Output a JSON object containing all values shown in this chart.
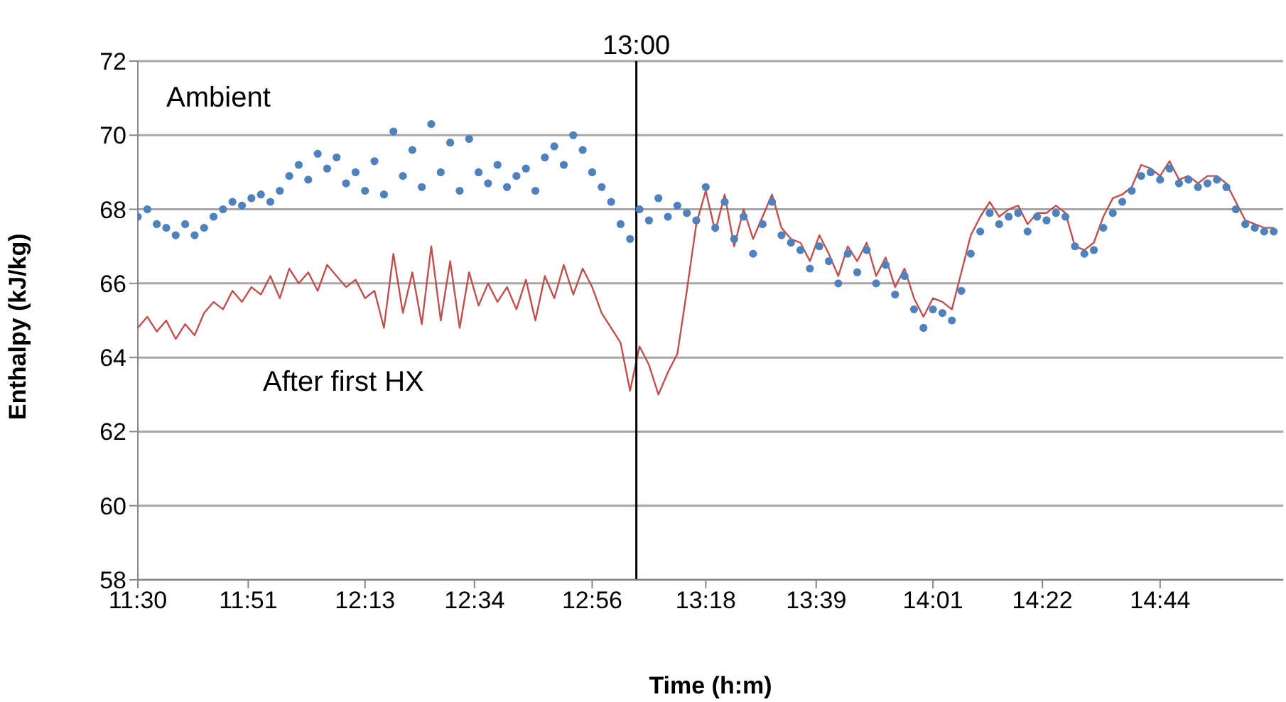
{
  "chart_data": {
    "type": "line",
    "xlabel": "Time (h:m)",
    "ylabel": "Enthalpy (kJ/kg)",
    "x": [
      11.5,
      11.53,
      11.56,
      11.59,
      11.62,
      11.65,
      11.68,
      11.71,
      11.74,
      11.77,
      11.8,
      11.83,
      11.86,
      11.89,
      11.92,
      11.95,
      11.98,
      12.01,
      12.04,
      12.07,
      12.1,
      12.13,
      12.16,
      12.19,
      12.22,
      12.25,
      12.28,
      12.31,
      12.34,
      12.37,
      12.4,
      12.43,
      12.46,
      12.49,
      12.52,
      12.55,
      12.58,
      12.61,
      12.64,
      12.67,
      12.7,
      12.73,
      12.76,
      12.79,
      12.82,
      12.85,
      12.88,
      12.91,
      12.94,
      12.97,
      13.0,
      13.03,
      13.06,
      13.09,
      13.12,
      13.15,
      13.18,
      13.21,
      13.24,
      13.27,
      13.3,
      13.33,
      13.36,
      13.39,
      13.42,
      13.45,
      13.48,
      13.51,
      13.54,
      13.57,
      13.6,
      13.63,
      13.66,
      13.69,
      13.72,
      13.75,
      13.78,
      13.81,
      13.84,
      13.87,
      13.9,
      13.93,
      13.96,
      13.99,
      14.02,
      14.05,
      14.08,
      14.11,
      14.14,
      14.17,
      14.2,
      14.23,
      14.26,
      14.29,
      14.32,
      14.35,
      14.38,
      14.41,
      14.44,
      14.47,
      14.5,
      14.53,
      14.56,
      14.59,
      14.62,
      14.65,
      14.68,
      14.71,
      14.74,
      14.77,
      14.8,
      14.83,
      14.86,
      14.89,
      14.92,
      14.95,
      14.98,
      15.01,
      15.04,
      15.07,
      15.1
    ],
    "series": [
      {
        "name": "Ambient",
        "type": "scatter",
        "marker": "circle",
        "color": "#4f81bd",
        "values": [
          67.8,
          68.0,
          67.6,
          67.5,
          67.3,
          67.6,
          67.3,
          67.5,
          67.8,
          68.0,
          68.2,
          68.1,
          68.3,
          68.4,
          68.2,
          68.5,
          68.9,
          69.2,
          68.8,
          69.5,
          69.1,
          69.4,
          68.7,
          69.0,
          68.5,
          69.3,
          68.4,
          70.1,
          68.9,
          69.6,
          68.6,
          70.3,
          69.0,
          69.8,
          68.5,
          69.9,
          69.0,
          68.7,
          69.2,
          68.6,
          68.9,
          69.1,
          68.5,
          69.4,
          69.7,
          69.2,
          70.0,
          69.6,
          69.0,
          68.6,
          68.2,
          67.6,
          67.2,
          68.0,
          67.7,
          68.3,
          67.8,
          68.1,
          67.9,
          67.7,
          68.6,
          67.5,
          68.2,
          67.2,
          67.8,
          66.8,
          67.6,
          68.2,
          67.3,
          67.1,
          66.9,
          66.4,
          67.0,
          66.6,
          66.0,
          66.8,
          66.3,
          66.9,
          66.0,
          66.5,
          65.7,
          66.2,
          65.3,
          64.8,
          65.3,
          65.2,
          65.0,
          65.8,
          66.8,
          67.4,
          67.9,
          67.6,
          67.8,
          67.9,
          67.4,
          67.8,
          67.7,
          67.9,
          67.8,
          67.0,
          66.8,
          66.9,
          67.5,
          67.9,
          68.2,
          68.5,
          68.9,
          69.0,
          68.8,
          69.1,
          68.7,
          68.8,
          68.6,
          68.7,
          68.8,
          68.6,
          68.0,
          67.6,
          67.5,
          67.4,
          67.4
        ]
      },
      {
        "name": "After first HX",
        "marker": "none",
        "color": "#c0504d",
        "values": [
          64.8,
          65.1,
          64.7,
          65.0,
          64.5,
          64.9,
          64.6,
          65.2,
          65.5,
          65.3,
          65.8,
          65.5,
          65.9,
          65.7,
          66.2,
          65.6,
          66.4,
          66.0,
          66.3,
          65.8,
          66.5,
          66.2,
          65.9,
          66.1,
          65.6,
          65.8,
          64.8,
          66.8,
          65.2,
          66.3,
          64.9,
          67.0,
          65.0,
          66.6,
          64.8,
          66.3,
          65.4,
          66.0,
          65.5,
          65.9,
          65.3,
          66.1,
          65.0,
          66.2,
          65.6,
          66.5,
          65.7,
          66.4,
          65.9,
          65.2,
          64.8,
          64.4,
          63.1,
          64.3,
          63.8,
          63.0,
          63.6,
          64.1,
          65.8,
          67.6,
          68.5,
          67.4,
          68.4,
          67.0,
          68.0,
          67.2,
          67.8,
          68.4,
          67.5,
          67.2,
          67.1,
          66.6,
          67.3,
          66.8,
          66.2,
          67.0,
          66.6,
          67.1,
          66.2,
          66.7,
          65.9,
          66.4,
          65.6,
          65.1,
          65.6,
          65.5,
          65.3,
          66.3,
          67.3,
          67.8,
          68.2,
          67.8,
          68.0,
          68.1,
          67.6,
          67.9,
          67.9,
          68.1,
          67.9,
          67.0,
          66.9,
          67.1,
          67.8,
          68.3,
          68.4,
          68.6,
          69.2,
          69.1,
          68.9,
          69.3,
          68.8,
          68.9,
          68.7,
          68.9,
          68.9,
          68.7,
          68.2,
          67.7,
          67.6,
          67.5,
          67.5
        ]
      }
    ],
    "xlim": [
      11.5,
      15.13
    ],
    "xticks": [
      {
        "value": 11.5,
        "label": "11:30"
      },
      {
        "value": 11.85,
        "label": "11:51"
      },
      {
        "value": 12.22,
        "label": "12:13"
      },
      {
        "value": 12.567,
        "label": "12:34"
      },
      {
        "value": 12.94,
        "label": "12:56"
      },
      {
        "value": 13.3,
        "label": "13:18"
      },
      {
        "value": 13.65,
        "label": "13:39"
      },
      {
        "value": 14.02,
        "label": "14:01"
      },
      {
        "value": 14.367,
        "label": "14:22"
      },
      {
        "value": 14.74,
        "label": "14:44"
      }
    ],
    "ylim": [
      58,
      72
    ],
    "yticks": [
      58,
      60,
      62,
      64,
      66,
      68,
      70,
      72
    ],
    "grid": "y",
    "legend": false,
    "ref_lines": [
      {
        "axis": "x",
        "value": 13.08,
        "label": "13:00",
        "color": "#000000"
      }
    ]
  }
}
